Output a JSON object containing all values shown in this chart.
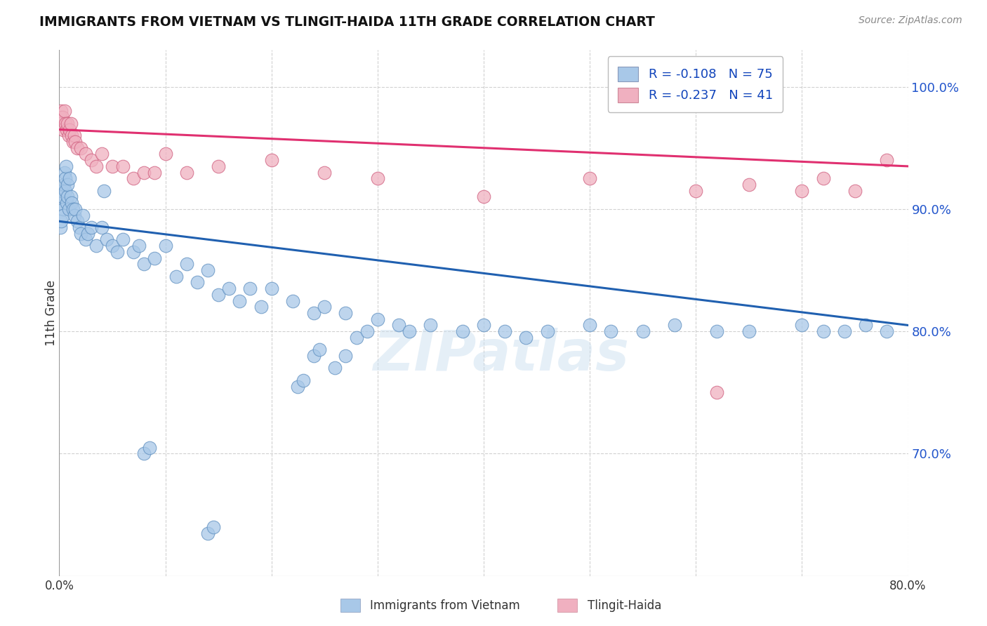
{
  "title": "IMMIGRANTS FROM VIETNAM VS TLINGIT-HAIDA 11TH GRADE CORRELATION CHART",
  "source": "Source: ZipAtlas.com",
  "ylabel": "11th Grade",
  "xlim": [
    0.0,
    80.0
  ],
  "ylim": [
    60.0,
    103.0
  ],
  "yticks": [
    70.0,
    80.0,
    90.0,
    100.0
  ],
  "ytick_labels": [
    "70.0%",
    "80.0%",
    "90.0%",
    "100.0%"
  ],
  "xticks": [
    0.0,
    10.0,
    20.0,
    30.0,
    40.0,
    50.0,
    60.0,
    70.0,
    80.0
  ],
  "xtick_labels": [
    "0.0%",
    "",
    "",
    "",
    "",
    "",
    "",
    "",
    "80.0%"
  ],
  "blue_color": "#a8c8e8",
  "pink_color": "#f0b0c0",
  "blue_line_color": "#2060b0",
  "pink_line_color": "#e03070",
  "legend_R_blue": "R = -0.108",
  "legend_N_blue": "N = 75",
  "legend_R_pink": "R = -0.237",
  "legend_N_pink": "N = 41",
  "watermark": "ZIPatlas",
  "background_color": "#ffffff",
  "blue_x": [
    0.1,
    0.15,
    0.2,
    0.25,
    0.3,
    0.35,
    0.4,
    0.45,
    0.5,
    0.55,
    0.6,
    0.65,
    0.7,
    0.75,
    0.8,
    0.9,
    1.0,
    1.1,
    1.2,
    1.3,
    1.4,
    1.5,
    1.7,
    1.9,
    2.0,
    2.2,
    2.5,
    2.7,
    3.0,
    3.5,
    4.0,
    4.5,
    5.0,
    5.5,
    6.0,
    7.0,
    7.5,
    8.0,
    9.0,
    10.0,
    11.0,
    12.0,
    13.0,
    14.0,
    15.0,
    16.0,
    17.0,
    18.0,
    19.0,
    20.0,
    22.0,
    24.0,
    25.0,
    27.0,
    30.0,
    32.0,
    33.0,
    35.0,
    38.0,
    40.0,
    42.0,
    44.0,
    46.0,
    50.0,
    52.0,
    55.0,
    58.0,
    62.0,
    65.0,
    70.0,
    72.0,
    74.0,
    76.0,
    78.0,
    4.2
  ],
  "blue_y": [
    88.5,
    89.0,
    90.5,
    91.5,
    91.0,
    90.0,
    89.5,
    92.0,
    93.0,
    91.5,
    92.5,
    93.5,
    90.5,
    91.0,
    92.0,
    90.0,
    92.5,
    91.0,
    90.5,
    90.0,
    89.5,
    90.0,
    89.0,
    88.5,
    88.0,
    89.5,
    87.5,
    88.0,
    88.5,
    87.0,
    88.5,
    87.5,
    87.0,
    86.5,
    87.5,
    86.5,
    87.0,
    85.5,
    86.0,
    87.0,
    84.5,
    85.5,
    84.0,
    85.0,
    83.0,
    83.5,
    82.5,
    83.5,
    82.0,
    83.5,
    82.5,
    81.5,
    82.0,
    81.5,
    81.0,
    80.5,
    80.0,
    80.5,
    80.0,
    80.5,
    80.0,
    79.5,
    80.0,
    80.5,
    80.0,
    80.0,
    80.5,
    80.0,
    80.0,
    80.5,
    80.0,
    80.0,
    80.5,
    80.0,
    91.5
  ],
  "blue_y_extra": [
    70.0,
    70.5,
    63.5,
    64.0,
    75.5,
    76.0,
    78.0,
    78.5,
    77.0,
    78.0,
    79.5,
    80.0
  ],
  "blue_x_extra": [
    8.0,
    8.5,
    14.0,
    14.5,
    22.5,
    23.0,
    24.0,
    24.5,
    26.0,
    27.0,
    28.0,
    29.0
  ],
  "pink_x": [
    0.1,
    0.2,
    0.3,
    0.4,
    0.5,
    0.6,
    0.7,
    0.8,
    0.9,
    1.0,
    1.1,
    1.2,
    1.3,
    1.4,
    1.5,
    1.7,
    2.0,
    2.5,
    3.0,
    3.5,
    4.0,
    5.0,
    6.0,
    7.0,
    8.0,
    9.0,
    10.0,
    12.0,
    15.0,
    20.0,
    25.0,
    30.0,
    40.0,
    50.0,
    60.0,
    62.0,
    65.0,
    70.0,
    72.0,
    75.0,
    78.0
  ],
  "pink_y": [
    97.5,
    98.0,
    97.5,
    96.5,
    98.0,
    97.0,
    96.5,
    97.0,
    96.0,
    96.5,
    97.0,
    96.0,
    95.5,
    96.0,
    95.5,
    95.0,
    95.0,
    94.5,
    94.0,
    93.5,
    94.5,
    93.5,
    93.5,
    92.5,
    93.0,
    93.0,
    94.5,
    93.0,
    93.5,
    94.0,
    93.0,
    92.5,
    91.0,
    92.5,
    91.5,
    75.0,
    92.0,
    91.5,
    92.5,
    91.5,
    94.0
  ],
  "blue_reg_x0": 0.0,
  "blue_reg_y0": 89.0,
  "blue_reg_x1": 80.0,
  "blue_reg_y1": 80.5,
  "pink_reg_x0": 0.0,
  "pink_reg_y0": 96.5,
  "pink_reg_x1": 80.0,
  "pink_reg_y1": 93.5
}
